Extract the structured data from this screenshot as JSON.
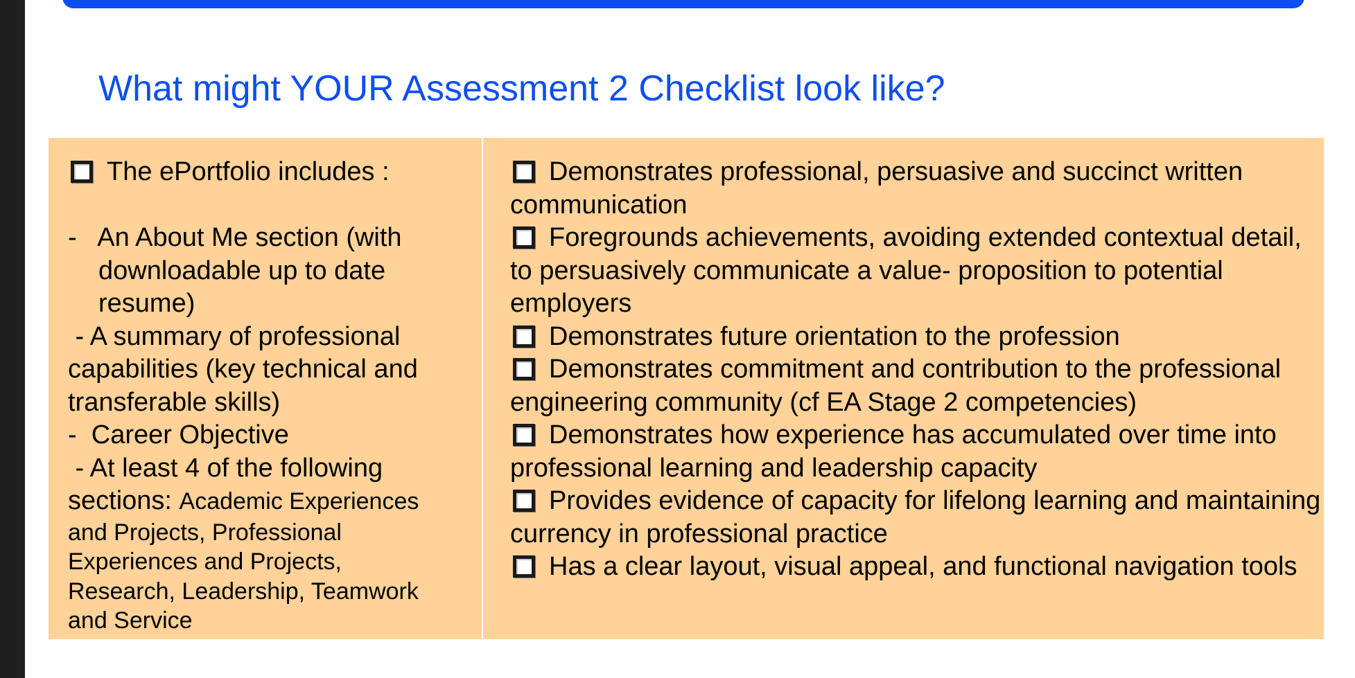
{
  "slide": {
    "title": "What might YOUR Assessment 2 Checklist look like?"
  },
  "left": {
    "heading": "The ePortfolio includes :",
    "lines": [
      "-   An About Me section (with",
      "downloadable up to date",
      "resume)",
      " - A summary of professional",
      "capabilities (key technical and",
      "transferable skills)",
      "-  Career Objective",
      " - At least 4 of the following",
      "sections: ",
      "Academic Experiences",
      "and Projects, Professional",
      "Experiences and Projects,",
      "Research, Leadership, Teamwork",
      "and Service"
    ]
  },
  "right": {
    "items": [
      "Demonstrates professional, persuasive and succinct written communication",
      "Foregrounds achievements, avoiding extended contextual detail, to persuasively communicate a value- proposition to potential employers",
      "Demonstrates future orientation to the profession",
      "Demonstrates commitment and contribution to the professional engineering community (cf EA Stage 2 competencies)",
      "Demonstrates how experience has accumulated over time into professional learning and leadership capacity",
      "Provides evidence of capacity for lifelong learning and maintaining currency in professional practice",
      "Has a clear layout, visual appeal, and functional navigation tools"
    ]
  }
}
